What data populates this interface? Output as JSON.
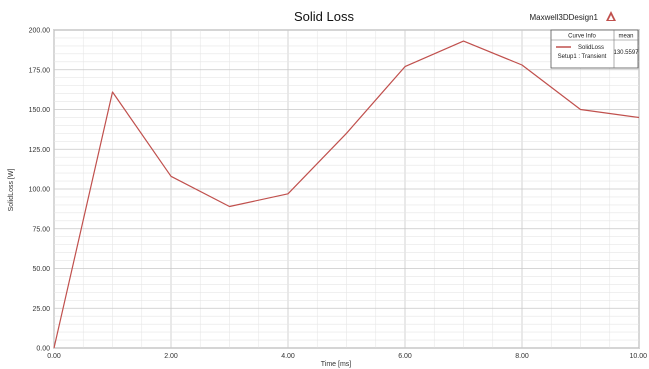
{
  "header": {
    "design_name": "Maxwell3DDesign1",
    "logo_icon": "ansys-logo-icon"
  },
  "legend": {
    "col_curve": "Curve Info",
    "col_mean": "mean",
    "entry_line1": "SolidLoss",
    "entry_line2": "Setup1 : Transient",
    "entry_mean": "130.5597",
    "color": "#c0504d"
  },
  "chart_data": {
    "type": "line",
    "title": "Solid Loss",
    "xlabel": "Time [ms]",
    "ylabel": "SolidLoss [W]",
    "xlim": [
      0,
      10
    ],
    "ylim": [
      0,
      200
    ],
    "x_ticks": [
      "0.00",
      "2.00",
      "4.00",
      "6.00",
      "8.00",
      "10.00"
    ],
    "y_ticks": [
      "0.00",
      "25.00",
      "50.00",
      "75.00",
      "100.00",
      "125.00",
      "150.00",
      "175.00",
      "200.00"
    ],
    "grid": true,
    "legend_position": "top-right",
    "series": [
      {
        "name": "SolidLoss",
        "color": "#c0504d",
        "x": [
          0,
          1,
          2,
          3,
          4,
          5,
          6,
          7,
          8,
          9,
          10
        ],
        "y": [
          0,
          161,
          108,
          89,
          97,
          135,
          177,
          193,
          178,
          150,
          145
        ]
      }
    ]
  }
}
